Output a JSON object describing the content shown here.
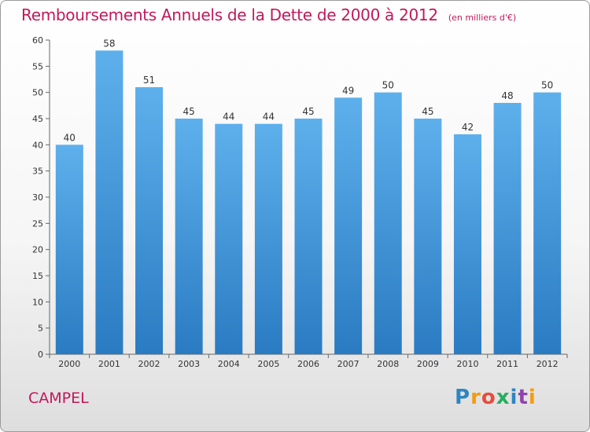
{
  "title": "Remboursements Annuels de la Dette de 2000 à 2012",
  "unit": "(en milliers d'€)",
  "commune": "CAMPEL",
  "logo_text": "Proxiti",
  "colors": {
    "bar_top": "#5eb0ec",
    "bar_bottom": "#2a7bc2",
    "title": "#c2185b"
  },
  "chart_data": {
    "type": "bar",
    "categories": [
      "2000",
      "2001",
      "2002",
      "2003",
      "2004",
      "2005",
      "2006",
      "2007",
      "2008",
      "2009",
      "2010",
      "2011",
      "2012"
    ],
    "values": [
      40,
      58,
      51,
      45,
      44,
      44,
      45,
      49,
      50,
      45,
      42,
      48,
      50
    ],
    "ylim": [
      0,
      60
    ],
    "yticks": [
      0,
      5,
      10,
      15,
      20,
      25,
      30,
      35,
      40,
      45,
      50,
      55,
      60
    ],
    "grid": false,
    "data_labels": true
  }
}
